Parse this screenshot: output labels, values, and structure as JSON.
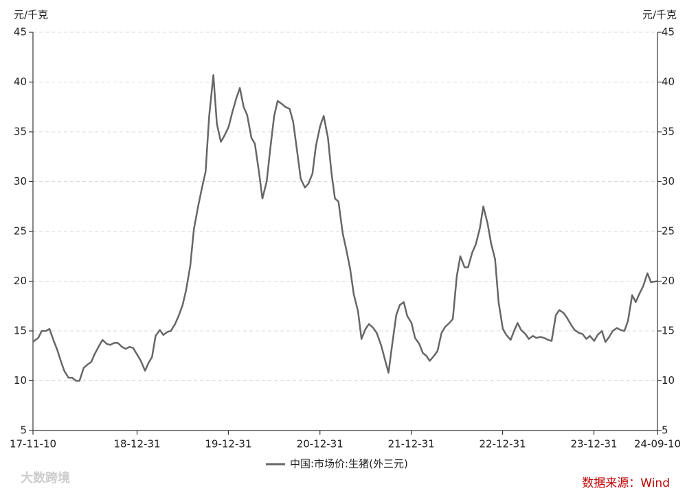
{
  "chart_data": {
    "type": "line",
    "y_label": "元/千克",
    "xlim": [
      "17-11-10",
      "24-09-10"
    ],
    "xticks": [
      "17-11-10",
      "18-12-31",
      "19-12-31",
      "20-12-31",
      "21-12-31",
      "22-12-31",
      "23-12-31",
      "24-09-10"
    ],
    "ylim": [
      5,
      45
    ],
    "yticks": [
      5,
      10,
      15,
      20,
      25,
      30,
      35,
      40,
      45
    ],
    "grid": true,
    "x": [
      "17-11-10",
      "17-11-15",
      "17-12-01",
      "17-12-15",
      "18-01-01",
      "18-01-15",
      "18-02-01",
      "18-02-15",
      "18-03-01",
      "18-03-15",
      "18-04-01",
      "18-04-15",
      "18-05-01",
      "18-05-15",
      "18-06-01",
      "18-06-15",
      "18-07-01",
      "18-07-15",
      "18-08-01",
      "18-08-15",
      "18-09-01",
      "18-09-15",
      "18-10-01",
      "18-10-15",
      "18-11-01",
      "18-11-15",
      "18-12-01",
      "18-12-15",
      "19-01-01",
      "19-01-15",
      "19-02-01",
      "19-02-15",
      "19-03-01",
      "19-03-15",
      "19-04-01",
      "19-04-15",
      "19-05-01",
      "19-05-15",
      "19-06-01",
      "19-06-15",
      "19-07-01",
      "19-07-15",
      "19-08-01",
      "19-08-15",
      "19-09-01",
      "19-09-15",
      "19-10-01",
      "19-10-15",
      "19-11-01",
      "19-11-15",
      "19-12-01",
      "19-12-15",
      "20-01-01",
      "20-01-15",
      "20-02-01",
      "20-02-15",
      "20-03-01",
      "20-03-15",
      "20-04-01",
      "20-04-15",
      "20-05-01",
      "20-05-15",
      "20-06-01",
      "20-06-15",
      "20-07-01",
      "20-07-15",
      "20-08-01",
      "20-08-15",
      "20-09-01",
      "20-09-15",
      "20-10-01",
      "20-10-15",
      "20-11-01",
      "20-11-15",
      "20-12-01",
      "20-12-15",
      "21-01-01",
      "21-01-15",
      "21-02-01",
      "21-02-15",
      "21-03-01",
      "21-03-15",
      "21-04-01",
      "21-04-15",
      "21-05-01",
      "21-05-15",
      "21-06-01",
      "21-06-15",
      "21-07-01",
      "21-07-15",
      "21-08-01",
      "21-08-15",
      "21-09-01",
      "21-09-15",
      "21-10-01",
      "21-10-15",
      "21-11-01",
      "21-11-15",
      "21-12-01",
      "21-12-15",
      "22-01-01",
      "22-01-15",
      "22-02-01",
      "22-02-15",
      "22-03-01",
      "22-03-15",
      "22-04-01",
      "22-04-15",
      "22-05-01",
      "22-05-15",
      "22-06-01",
      "22-06-15",
      "22-07-01",
      "22-07-15",
      "22-08-01",
      "22-08-15",
      "22-09-01",
      "22-09-15",
      "22-10-01",
      "22-10-15",
      "22-11-01",
      "22-11-15",
      "22-12-01",
      "22-12-15",
      "23-01-01",
      "23-01-15",
      "23-02-01",
      "23-02-15",
      "23-03-01",
      "23-03-15",
      "23-04-01",
      "23-04-15",
      "23-05-01",
      "23-05-15",
      "23-06-01",
      "23-06-15",
      "23-07-01",
      "23-07-15",
      "23-08-01",
      "23-08-15",
      "23-09-01",
      "23-09-15",
      "23-10-01",
      "23-10-15",
      "23-11-01",
      "23-11-15",
      "23-12-01",
      "23-12-15",
      "24-01-01",
      "24-01-15",
      "24-02-01",
      "24-02-15",
      "24-03-01",
      "24-03-15",
      "24-04-01",
      "24-04-15",
      "24-05-01",
      "24-05-15",
      "24-06-01",
      "24-06-15",
      "24-07-01",
      "24-07-15",
      "24-08-01",
      "24-08-15",
      "24-09-10"
    ],
    "series": [
      {
        "name": "中国:市场价:生猪(外三元)",
        "color": "#666666",
        "values": [
          13.9,
          14.0,
          14.3,
          15.0,
          15.0,
          15.2,
          14.0,
          13.1,
          12.0,
          11.0,
          10.3,
          10.3,
          10.0,
          10.0,
          11.3,
          11.6,
          11.9,
          12.7,
          13.5,
          14.1,
          13.7,
          13.6,
          13.8,
          13.8,
          13.4,
          13.2,
          13.4,
          13.3,
          12.6,
          12.0,
          11.0,
          11.8,
          12.4,
          14.5,
          15.1,
          14.6,
          14.9,
          15.0,
          15.7,
          16.5,
          17.6,
          19.1,
          21.6,
          25.2,
          27.5,
          29.2,
          31.0,
          36.5,
          40.7,
          35.8,
          34.0,
          34.6,
          35.5,
          36.9,
          38.4,
          39.4,
          37.5,
          36.7,
          34.4,
          33.8,
          31.0,
          28.3,
          30.0,
          33.2,
          36.6,
          38.1,
          37.8,
          37.5,
          37.3,
          36.0,
          33.0,
          30.3,
          29.4,
          29.8,
          30.8,
          33.6,
          35.6,
          36.6,
          34.4,
          30.9,
          28.3,
          28.0,
          24.8,
          23.2,
          21.2,
          18.7,
          17.0,
          14.2,
          15.2,
          15.7,
          15.3,
          14.8,
          13.6,
          12.3,
          10.8,
          13.5,
          16.6,
          17.6,
          17.9,
          16.5,
          15.8,
          14.3,
          13.7,
          12.8,
          12.5,
          12.0,
          12.5,
          13.0,
          14.8,
          15.4,
          15.8,
          16.2,
          20.5,
          22.5,
          21.4,
          21.4,
          22.9,
          23.7,
          25.3,
          27.5,
          25.8,
          23.8,
          22.2,
          17.9,
          15.2,
          14.6,
          14.1,
          15.0,
          15.8,
          15.1,
          14.7,
          14.2,
          14.5,
          14.3,
          14.4,
          14.3,
          14.1,
          14.0,
          16.6,
          17.1,
          16.8,
          16.3,
          15.6,
          15.1,
          14.8,
          14.7,
          14.2,
          14.5,
          14.0,
          14.6,
          15.0,
          13.9,
          14.4,
          15.0,
          15.3,
          15.1,
          15.0,
          16.0,
          18.6,
          17.9,
          18.8,
          19.5,
          20.8,
          19.9,
          20.0
        ]
      }
    ],
    "source": "数据来源：Wind",
    "watermark": "大数跨境"
  }
}
